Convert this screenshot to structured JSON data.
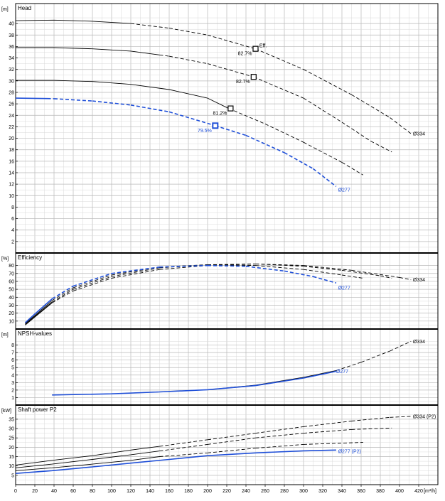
{
  "colors": {
    "blue": "#1f4fd8",
    "black": "#000000"
  },
  "x_axis": {
    "unit": "[m³/h]",
    "ticks": [
      "0",
      "20",
      "40",
      "60",
      "80",
      "100",
      "120",
      "140",
      "160",
      "180",
      "200",
      "220",
      "240",
      "260",
      "280",
      "300",
      "320",
      "340",
      "360",
      "380",
      "400",
      "420"
    ]
  },
  "chart_data": [
    {
      "type": "line",
      "title": "Head",
      "ylabel": "[m]",
      "ylim": [
        0,
        42
      ],
      "xlim": [
        0,
        440
      ],
      "yticks": [
        "2",
        "4",
        "6",
        "8",
        "10",
        "12",
        "14",
        "16",
        "18",
        "20",
        "22",
        "24",
        "26",
        "28",
        "30",
        "32",
        "34",
        "36",
        "38",
        "40"
      ],
      "series": [
        {
          "diameter": "Ø334",
          "color": "#000000",
          "solid_until": 120,
          "points": [
            [
              0,
              40.5
            ],
            [
              40,
              40.6
            ],
            [
              80,
              40.4
            ],
            [
              120,
              40.0
            ],
            [
              160,
              39.2
            ],
            [
              200,
              38.0
            ],
            [
              250,
              35.6
            ],
            [
              300,
              32.0
            ],
            [
              350,
              27.6
            ],
            [
              390,
              23.6
            ],
            [
              412,
              20.8
            ]
          ]
        },
        {
          "diameter": "",
          "color": "#000000",
          "solid_until": 150,
          "points": [
            [
              0,
              35.8
            ],
            [
              40,
              35.8
            ],
            [
              80,
              35.6
            ],
            [
              120,
              35.2
            ],
            [
              160,
              34.3
            ],
            [
              200,
              33.0
            ],
            [
              248,
              30.7
            ],
            [
              300,
              27.0
            ],
            [
              340,
              22.8
            ],
            [
              370,
              19.5
            ],
            [
              392,
              17.6
            ]
          ]
        },
        {
          "diameter": "",
          "color": "#000000",
          "solid_until": 220,
          "points": [
            [
              0,
              30.1
            ],
            [
              40,
              30.1
            ],
            [
              80,
              29.9
            ],
            [
              120,
              29.4
            ],
            [
              160,
              28.5
            ],
            [
              200,
              27.0
            ],
            [
              222,
              25.2
            ],
            [
              260,
              22.5
            ],
            [
              300,
              19.3
            ],
            [
              340,
              15.8
            ],
            [
              362,
              13.6
            ]
          ]
        },
        {
          "diameter": "Ø277",
          "color": "#1f4fd8",
          "solid_until": 33,
          "points": [
            [
              0,
              27.0
            ],
            [
              40,
              26.9
            ],
            [
              80,
              26.5
            ],
            [
              120,
              25.8
            ],
            [
              160,
              24.6
            ],
            [
              208,
              22.2
            ],
            [
              240,
              20.5
            ],
            [
              280,
              17.5
            ],
            [
              310,
              14.7
            ],
            [
              334,
              11.6
            ]
          ]
        }
      ],
      "markers": [
        {
          "x": 250,
          "y": 35.6,
          "label": "82.7%",
          "color": "#000000"
        },
        {
          "x": 248,
          "y": 30.7,
          "label": "82.7%",
          "color": "#000000"
        },
        {
          "x": 224,
          "y": 25.2,
          "label": "81.2%",
          "color": "#000000"
        },
        {
          "x": 208,
          "y": 22.2,
          "label": "79.5%",
          "color": "#1f4fd8"
        }
      ],
      "annotations": [
        {
          "text": "Eff.",
          "x": 254,
          "y": 36.2,
          "color": "#000000"
        },
        {
          "text": "Ø334",
          "x": 414,
          "y": 20.8,
          "color": "#000000"
        },
        {
          "text": "Ø277",
          "x": 336,
          "y": 11.0,
          "color": "#1f4fd8"
        }
      ]
    },
    {
      "type": "line",
      "title": "Efficiency",
      "ylabel": "[%]",
      "ylim": [
        0,
        85
      ],
      "xlim": [
        0,
        440
      ],
      "yticks": [
        "10",
        "20",
        "30",
        "40",
        "50",
        "60",
        "70",
        "80"
      ],
      "series": [
        {
          "diameter": "Ø334",
          "color": "#000000",
          "solid_until": 38,
          "points": [
            [
              10,
              5
            ],
            [
              20,
              15
            ],
            [
              38,
              33
            ],
            [
              60,
              48
            ],
            [
              100,
              64
            ],
            [
              150,
              75
            ],
            [
              200,
              80
            ],
            [
              250,
              82
            ],
            [
              300,
              80
            ],
            [
              350,
              74
            ],
            [
              400,
              65
            ],
            [
              412,
              62
            ]
          ]
        },
        {
          "diameter": "",
          "color": "#000000",
          "solid_until": 38,
          "points": [
            [
              10,
              6
            ],
            [
              20,
              16
            ],
            [
              38,
              34
            ],
            [
              60,
              50
            ],
            [
              100,
              66
            ],
            [
              150,
              77
            ],
            [
              200,
              81
            ],
            [
              250,
              82
            ],
            [
              300,
              79
            ],
            [
              340,
              74
            ],
            [
              380,
              67
            ],
            [
              392,
              64
            ]
          ]
        },
        {
          "diameter": "",
          "color": "#000000",
          "solid_until": 38,
          "points": [
            [
              10,
              7
            ],
            [
              20,
              17
            ],
            [
              38,
              36
            ],
            [
              60,
              52
            ],
            [
              100,
              68
            ],
            [
              150,
              78
            ],
            [
              200,
              81
            ],
            [
              250,
              80
            ],
            [
              300,
              75
            ],
            [
              340,
              68
            ],
            [
              362,
              64
            ]
          ]
        },
        {
          "diameter": "Ø277",
          "color": "#1f4fd8",
          "solid_until": 38,
          "points": [
            [
              10,
              8
            ],
            [
              20,
              19
            ],
            [
              38,
              38
            ],
            [
              60,
              54
            ],
            [
              100,
              70
            ],
            [
              150,
              78
            ],
            [
              200,
              80
            ],
            [
              240,
              79
            ],
            [
              280,
              73
            ],
            [
              310,
              66
            ],
            [
              334,
              58
            ]
          ]
        }
      ],
      "annotations": [
        {
          "text": "Ø334",
          "x": 414,
          "y": 62,
          "color": "#000000"
        },
        {
          "text": "Ø277",
          "x": 336,
          "y": 52,
          "color": "#1f4fd8"
        }
      ]
    },
    {
      "type": "line",
      "title": "NPSH-values",
      "ylabel": "[m]",
      "ylim": [
        0,
        9
      ],
      "xlim": [
        0,
        440
      ],
      "yticks": [
        "1",
        "2",
        "3",
        "4",
        "5",
        "6",
        "7",
        "8"
      ],
      "series": [
        {
          "diameter": "Ø334",
          "color": "#000000",
          "solid_until": 334,
          "points": [
            [
              38,
              1.35
            ],
            [
              100,
              1.5
            ],
            [
              150,
              1.75
            ],
            [
              200,
              2.05
            ],
            [
              250,
              2.65
            ],
            [
              300,
              3.7
            ],
            [
              334,
              4.6
            ],
            [
              360,
              5.7
            ],
            [
              390,
              7.2
            ],
            [
              412,
              8.5
            ]
          ]
        },
        {
          "diameter": "Ø277",
          "color": "#1f4fd8",
          "solid_until": 334,
          "points": [
            [
              38,
              1.35
            ],
            [
              100,
              1.5
            ],
            [
              150,
              1.75
            ],
            [
              200,
              2.05
            ],
            [
              250,
              2.6
            ],
            [
              300,
              3.6
            ],
            [
              334,
              4.5
            ]
          ]
        }
      ],
      "annotations": [
        {
          "text": "Ø334",
          "x": 414,
          "y": 8.5,
          "color": "#000000"
        },
        {
          "text": "Ø277",
          "x": 334,
          "y": 4.5,
          "color": "#1f4fd8"
        }
      ]
    },
    {
      "type": "line",
      "title": "Shaft power P2",
      "ylabel": "[kW]",
      "ylim": [
        0,
        38
      ],
      "xlim": [
        0,
        440
      ],
      "yticks": [
        "5",
        "10",
        "15",
        "20",
        "25",
        "30",
        "35"
      ],
      "series": [
        {
          "diameter": "Ø334 (P2)",
          "color": "#000000",
          "solid_until": 150,
          "points": [
            [
              0,
              10.5
            ],
            [
              38,
              13
            ],
            [
              80,
              15.5
            ],
            [
              120,
              18.5
            ],
            [
              150,
              20.5
            ],
            [
              200,
              24
            ],
            [
              250,
              27.5
            ],
            [
              300,
              31
            ],
            [
              350,
              34
            ],
            [
              390,
              36
            ],
            [
              412,
              36.5
            ]
          ]
        },
        {
          "diameter": "",
          "color": "#000000",
          "solid_until": 150,
          "points": [
            [
              0,
              9
            ],
            [
              38,
              11
            ],
            [
              80,
              13.5
            ],
            [
              120,
              16
            ],
            [
              150,
              18
            ],
            [
              200,
              21.5
            ],
            [
              250,
              25
            ],
            [
              300,
              27.5
            ],
            [
              350,
              29.5
            ],
            [
              392,
              30.3
            ]
          ]
        },
        {
          "diameter": "",
          "color": "#000000",
          "solid_until": 150,
          "points": [
            [
              0,
              7.5
            ],
            [
              38,
              9
            ],
            [
              80,
              11
            ],
            [
              120,
              13
            ],
            [
              150,
              15
            ],
            [
              200,
              17
            ],
            [
              250,
              19.5
            ],
            [
              300,
              21.5
            ],
            [
              362,
              22.6
            ]
          ]
        },
        {
          "diameter": "Ø277 (P2)",
          "color": "#1f4fd8",
          "solid_until": 334,
          "points": [
            [
              0,
              6
            ],
            [
              38,
              7.5
            ],
            [
              80,
              9.5
            ],
            [
              120,
              11.5
            ],
            [
              160,
              13.5
            ],
            [
              200,
              15.5
            ],
            [
              250,
              17
            ],
            [
              300,
              18.1
            ],
            [
              334,
              18.5
            ]
          ]
        }
      ],
      "annotations": [
        {
          "text": "Ø334 (P2)",
          "x": 414,
          "y": 36.5,
          "color": "#000000"
        },
        {
          "text": "Ø277 (P2)",
          "x": 336,
          "y": 17.8,
          "color": "#1f4fd8"
        }
      ]
    }
  ]
}
